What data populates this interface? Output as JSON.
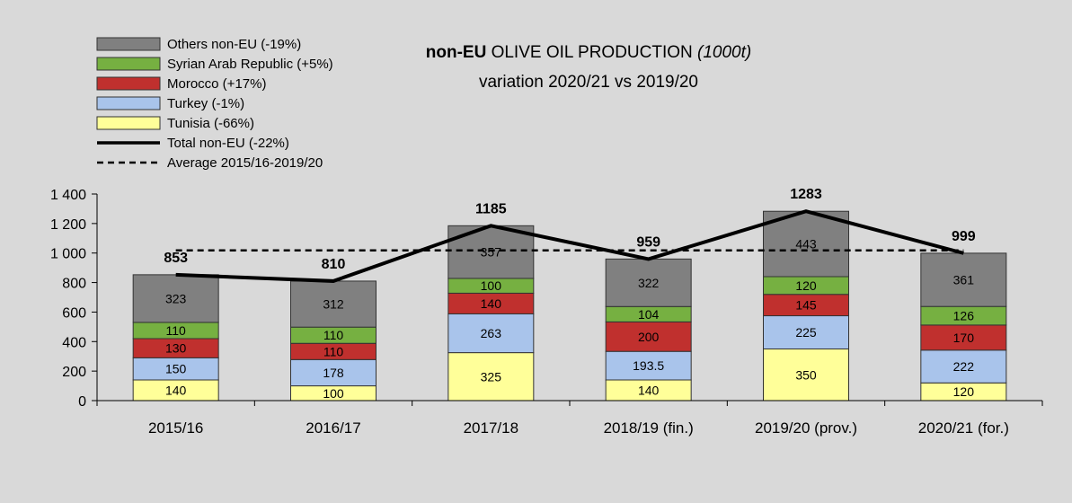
{
  "chart_data": {
    "type": "bar",
    "stacked": true,
    "title_bold": "non-EU",
    "title_main": " OLIVE OIL PRODUCTION ",
    "title_unit": "(1000t)",
    "subtitle": "variation 2020/21  vs 2019/20",
    "categories": [
      "2015/16",
      "2016/17",
      "2017/18",
      "2018/19 (fin.)",
      "2019/20 (prov.)",
      "2020/21 (for.)"
    ],
    "ylim": [
      0,
      1400
    ],
    "yticks": [
      0,
      200,
      400,
      600,
      800,
      1000,
      1200,
      1400
    ],
    "ytick_labels": [
      "0",
      "200",
      "400",
      "600",
      "800",
      "1 000",
      "1 200",
      "1 400"
    ],
    "series": [
      {
        "name": "Tunisia (-66%)",
        "color": "#ffff99",
        "values": [
          140,
          100,
          325,
          140,
          350,
          120
        ],
        "labels": [
          "140",
          "100",
          "325",
          "140",
          "350",
          "120"
        ]
      },
      {
        "name": "Turkey (-1%)",
        "color": "#a9c4eb",
        "values": [
          150,
          178,
          263,
          193.5,
          225,
          222
        ],
        "labels": [
          "150",
          "178",
          "263",
          "193.5",
          "225",
          "222"
        ]
      },
      {
        "name": "Morocco (+17%)",
        "color": "#c0302e",
        "values": [
          130,
          110,
          140,
          200,
          145,
          170
        ],
        "labels": [
          "130",
          "110",
          "140",
          "200",
          "145",
          "170"
        ]
      },
      {
        "name": "Syrian Arab Republic (+5%)",
        "color": "#76b041",
        "values": [
          110,
          110,
          100,
          104,
          120,
          126
        ],
        "labels": [
          "110",
          "110",
          "100",
          "104",
          "120",
          "126"
        ]
      },
      {
        "name": "Others non-EU (-19%)",
        "color": "#808080",
        "values": [
          323,
          312,
          357,
          322,
          443,
          361
        ],
        "labels": [
          "323",
          "312",
          "357",
          "322",
          "443",
          "361"
        ]
      }
    ],
    "total": {
      "name": "Total non-EU (-22%)",
      "values": [
        853,
        810,
        1185,
        959,
        1283,
        999
      ],
      "labels": [
        "853",
        "810",
        "1185",
        "959",
        "1283",
        "999"
      ]
    },
    "average": {
      "name": "Average 2015/16-2019/20",
      "value": 1018
    },
    "legend_order": [
      "Others non-EU (-19%)",
      "Syrian Arab Republic (+5%)",
      "Morocco (+17%)",
      "Turkey (-1%)",
      "Tunisia (-66%)",
      "Total non-EU (-22%)",
      "Average 2015/16-2019/20"
    ],
    "legend_position": "top-left",
    "grid": false
  }
}
